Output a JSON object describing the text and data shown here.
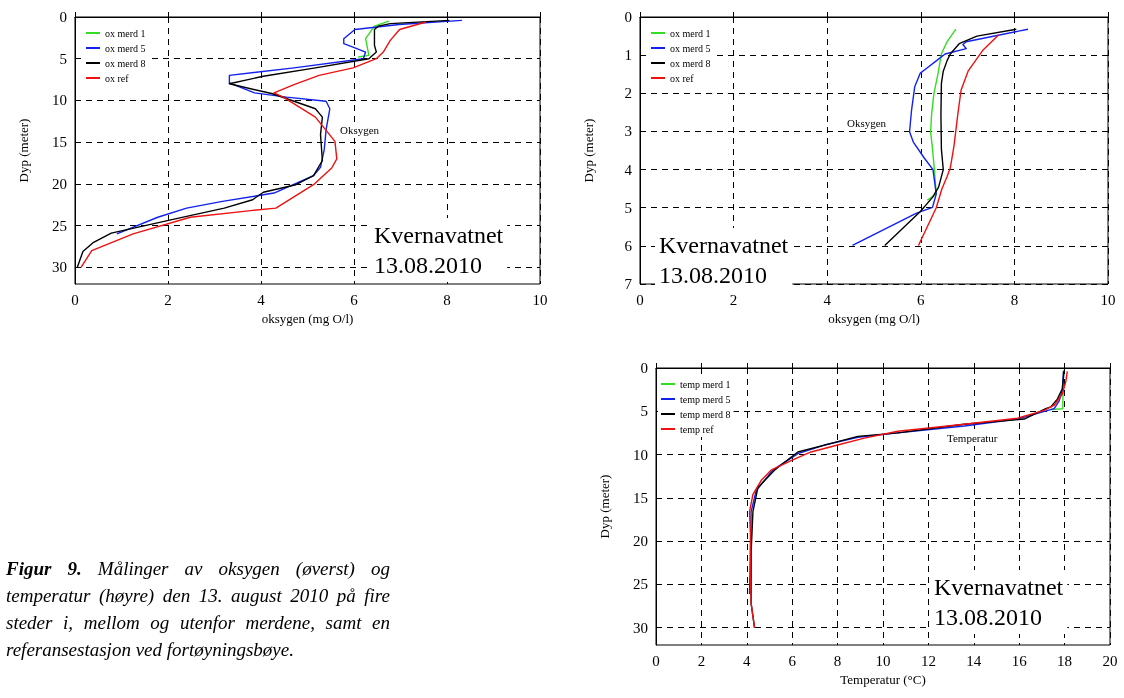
{
  "chart_data": [
    {
      "type": "line",
      "xlabel": "oksygen (mg O/l)",
      "ylabel": "Dyp (meter)",
      "xlim": [
        0,
        10
      ],
      "xticks": [
        0,
        2,
        4,
        6,
        8,
        10
      ],
      "ylim": [
        32,
        0
      ],
      "yticks": [
        0,
        5,
        10,
        15,
        20,
        25,
        30
      ],
      "grid": true,
      "legend": "top left",
      "annotations": [
        "Oksygen",
        "Kvernavatnet\n13.08.2010"
      ],
      "series": [
        {
          "name": "ox merd 1",
          "color": "#33dd22",
          "x": [
            6.75,
            6.44,
            6.25,
            6.32,
            6.09
          ],
          "values": [
            0.5,
            1.1,
            2.6,
            4.6,
            4.8
          ]
        },
        {
          "name": "ox merd 5",
          "color": "#1122ee",
          "x": [
            8.32,
            6.97,
            6.02,
            5.78,
            5.78,
            6.02,
            6.25,
            6.2,
            4.71,
            3.32,
            3.32,
            3.86,
            4.55,
            5.4,
            5.48,
            5.4,
            5.36,
            5.28,
            5.13,
            4.28,
            3.17,
            2.4,
            1.78,
            0.9
          ],
          "values": [
            0.4,
            0.9,
            1.5,
            2.6,
            3.2,
            3.7,
            4.2,
            5.0,
            6.1,
            7.0,
            7.9,
            9.1,
            9.6,
            10.1,
            11.0,
            13.5,
            15.9,
            18.0,
            19.0,
            21.1,
            22.1,
            22.9,
            24.0,
            26.0
          ]
        },
        {
          "name": "ox merd 8",
          "color": "#000000",
          "x": [
            8.05,
            6.78,
            6.52,
            6.44,
            6.44,
            6.48,
            6.32,
            5.17,
            4.05,
            3.32,
            4.25,
            5.17,
            5.32,
            5.28,
            5.32,
            5.13,
            4.75,
            4.05,
            3.82,
            3.21,
            2.4,
            0.78,
            0.4,
            0.17,
            0.05
          ],
          "values": [
            0.4,
            0.8,
            1.1,
            1.5,
            3.4,
            4.2,
            5.0,
            6.1,
            7.1,
            8.0,
            9.2,
            11.0,
            12.0,
            14.1,
            17.2,
            19.0,
            20.1,
            21.0,
            21.9,
            22.9,
            23.9,
            25.9,
            27.0,
            28.1,
            30
          ]
        },
        {
          "name": "ox ref",
          "color": "#ee1111",
          "x": [
            7.55,
            6.98,
            6.78,
            6.63,
            6.48,
            5.98,
            5.25,
            4.71,
            4.28,
            4.48,
            5.17,
            5.59,
            5.63,
            5.52,
            5.13,
            4.32,
            3.78,
            2.48,
            1.25,
            0.36,
            0.13
          ],
          "values": [
            0.6,
            1.5,
            2.8,
            4.2,
            5.0,
            6.1,
            7.0,
            8.1,
            9.1,
            9.6,
            12.0,
            14.9,
            17.0,
            18.1,
            20.1,
            22.9,
            23.2,
            24.0,
            26.0,
            28.0,
            30
          ]
        }
      ]
    },
    {
      "type": "line",
      "xlabel": "oksygen (mg O/l)",
      "ylabel": "Dyp (meter)",
      "xlim": [
        0,
        10
      ],
      "xticks": [
        0,
        2,
        4,
        6,
        8,
        10
      ],
      "ylim": [
        7,
        0
      ],
      "yticks": [
        0,
        1,
        2,
        3,
        4,
        5,
        6,
        7
      ],
      "grid": true,
      "legend": "top left",
      "annotations": [
        "Oksygen",
        "Kvernavatnet\n13.08.2010"
      ],
      "series": [
        {
          "name": "ox merd 1",
          "color": "#33dd22",
          "x": [
            6.75,
            6.56,
            6.44,
            6.37,
            6.28,
            6.23,
            6.21,
            6.25,
            6.29,
            6.33,
            6.14
          ],
          "values": [
            0.32,
            0.65,
            0.97,
            1.47,
            2.01,
            2.56,
            3.01,
            3.46,
            4.0,
            4.64,
            4.8
          ]
        },
        {
          "name": "ox merd 5",
          "color": "#1122ee",
          "x": [
            8.29,
            6.97,
            6.9,
            6.97,
            6.52,
            6.33,
            6.14,
            5.99,
            5.87,
            5.8,
            5.76,
            5.84,
            6.07,
            6.26,
            6.33,
            6.25,
            5.91,
            4.54
          ],
          "values": [
            0.32,
            0.65,
            0.72,
            0.83,
            0.97,
            1.15,
            1.33,
            1.47,
            1.83,
            2.47,
            3.01,
            3.28,
            3.69,
            4.0,
            4.64,
            4.99,
            5.14,
            5.99
          ]
        },
        {
          "name": "ox merd 8",
          "color": "#000000",
          "x": [
            8.04,
            7.2,
            6.82,
            6.63,
            6.56,
            6.48,
            6.44,
            6.43,
            6.44,
            6.48,
            6.38,
            6.25,
            5.99,
            5.23
          ],
          "values": [
            0.32,
            0.5,
            0.7,
            0.97,
            1.15,
            1.42,
            1.74,
            2.56,
            3.46,
            4.0,
            4.46,
            4.73,
            5.1,
            5.99
          ]
        },
        {
          "name": "ox ref",
          "color": "#ee1111",
          "x": [
            7.66,
            7.32,
            7.01,
            6.86,
            6.79,
            6.71,
            6.63,
            6.56,
            6.45,
            6.33,
            5.95
          ],
          "values": [
            0.47,
            0.88,
            1.42,
            1.92,
            2.56,
            3.37,
            3.96,
            4.19,
            4.51,
            5.0,
            5.99
          ]
        }
      ]
    },
    {
      "type": "line",
      "xlabel": "Temperatur (°C)",
      "ylabel": "Dyp (meter)",
      "xlim": [
        0,
        20
      ],
      "xticks": [
        0,
        2,
        4,
        6,
        8,
        10,
        12,
        14,
        16,
        18,
        20
      ],
      "ylim": [
        32,
        0
      ],
      "yticks": [
        0,
        5,
        10,
        15,
        20,
        25,
        30
      ],
      "grid": true,
      "legend": "top left",
      "annotations": [
        "Temperatur",
        "Kvernavatnet\n13.08.2010"
      ],
      "series": [
        {
          "name": "temp merd 1",
          "color": "#33dd22",
          "x": [
            17.95,
            17.92,
            17.92,
            17.39
          ],
          "values": [
            0.3,
            4.5,
            4.7,
            4.8
          ]
        },
        {
          "name": "temp merd 5",
          "color": "#1122ee",
          "x": [
            17.95,
            17.9,
            17.76,
            17.54,
            15.92,
            13.58,
            10.65,
            8.89,
            7.42,
            6.25,
            5.14,
            4.41,
            4.19,
            4.16,
            4.12
          ],
          "values": [
            0.4,
            2.6,
            3.8,
            4.7,
            5.9,
            6.7,
            7.5,
            8.0,
            8.9,
            9.9,
            11.8,
            14.2,
            16.6,
            21.3,
            26.1
          ]
        },
        {
          "name": "temp merd 8",
          "color": "#000000",
          "x": [
            17.98,
            17.9,
            17.68,
            17.39,
            17.17,
            16.22,
            13.58,
            10.65,
            8.89,
            7.72,
            6.25,
            5.22,
            4.49,
            4.27,
            4.19,
            4.19,
            4.34
          ],
          "values": [
            0.3,
            2.4,
            3.6,
            4.5,
            4.7,
            5.9,
            6.5,
            7.5,
            7.9,
            8.7,
            9.7,
            11.8,
            13.8,
            16.6,
            21.3,
            27.2,
            30
          ]
        },
        {
          "name": "temp ref",
          "color": "#ee1111",
          "x": [
            18.12,
            18.05,
            17.9,
            17.54,
            17.1,
            15.92,
            13.58,
            10.65,
            9.18,
            8.0,
            6.83,
            5.95,
            5.07,
            4.63,
            4.27,
            4.12,
            4.16,
            4.16,
            4.19,
            4.34
          ],
          "values": [
            0.4,
            1.6,
            3.0,
            4.3,
            4.9,
            5.8,
            6.5,
            7.3,
            8.1,
            8.9,
            9.7,
            10.7,
            11.8,
            13.0,
            14.6,
            16.6,
            19.3,
            23.3,
            27.2,
            30
          ]
        }
      ]
    },
    {
      "type": "other",
      "annotations": [
        "Figur 9.",
        "Målinger av oksygen (øverst) og temperatur (høyre) den 13. august 2010 på fire steder i, mellom og utenfor merdene, samt en referansestasjon ved fortøyningsbøye."
      ]
    }
  ]
}
